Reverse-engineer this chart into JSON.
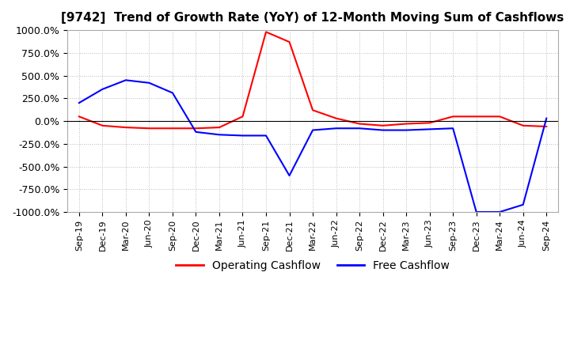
{
  "title": "[9742]  Trend of Growth Rate (YoY) of 12-Month Moving Sum of Cashflows",
  "title_fontsize": 11,
  "legend_labels": [
    "Operating Cashflow",
    "Free Cashflow"
  ],
  "legend_colors": [
    "red",
    "blue"
  ],
  "ylim": [
    -1000,
    1000
  ],
  "yticks": [
    -1000,
    -750,
    -500,
    -250,
    0,
    250,
    500,
    750,
    1000
  ],
  "background_color": "#ffffff",
  "grid_color": "#bbbbbb",
  "x_labels": [
    "Sep-19",
    "Dec-19",
    "Mar-20",
    "Jun-20",
    "Sep-20",
    "Dec-20",
    "Mar-21",
    "Jun-21",
    "Sep-21",
    "Dec-21",
    "Mar-22",
    "Jun-22",
    "Sep-22",
    "Dec-22",
    "Mar-23",
    "Jun-23",
    "Sep-23",
    "Dec-23",
    "Mar-24",
    "Jun-24",
    "Sep-24"
  ],
  "operating_cashflow": [
    50,
    -50,
    -70,
    -80,
    -80,
    -80,
    -70,
    50,
    980,
    870,
    120,
    30,
    -30,
    -50,
    -30,
    -20,
    50,
    50,
    50,
    -50,
    -60
  ],
  "free_cashflow": [
    200,
    350,
    450,
    420,
    310,
    -120,
    -150,
    -160,
    -160,
    -600,
    -100,
    -80,
    -80,
    -100,
    -100,
    -90,
    -80,
    -1000,
    -1000,
    -920,
    30
  ]
}
